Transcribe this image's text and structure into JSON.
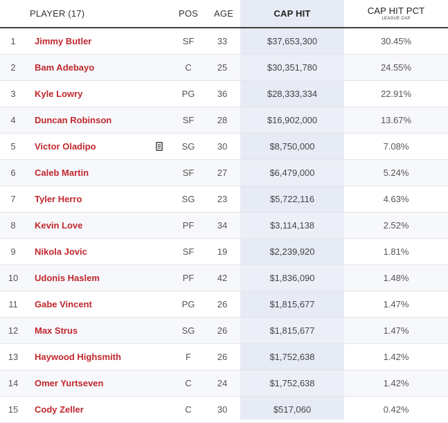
{
  "header": {
    "player": "PLAYER (17)",
    "pos": "POS",
    "age": "AGE",
    "cap_hit": "CAP HIT",
    "cap_hit_pct": "CAP HIT PCT",
    "cap_hit_pct_sub": "LEAGUE CAP"
  },
  "rows": [
    {
      "rank": "1",
      "name": "Jimmy Butler",
      "pos": "SF",
      "age": "33",
      "cap": "$37,653,300",
      "pct": "30.45%"
    },
    {
      "rank": "2",
      "name": "Bam Adebayo",
      "pos": "C",
      "age": "25",
      "cap": "$30,351,780",
      "pct": "24.55%"
    },
    {
      "rank": "3",
      "name": "Kyle Lowry",
      "pos": "PG",
      "age": "36",
      "cap": "$28,333,334",
      "pct": "22.91%"
    },
    {
      "rank": "4",
      "name": "Duncan Robinson",
      "pos": "SF",
      "age": "28",
      "cap": "$16,902,000",
      "pct": "13.67%"
    },
    {
      "rank": "5",
      "name": "Victor Oladipo",
      "pos": "SG",
      "age": "30",
      "cap": "$8,750,000",
      "pct": "7.08%",
      "note_icon": "document-icon"
    },
    {
      "rank": "6",
      "name": "Caleb Martin",
      "pos": "SF",
      "age": "27",
      "cap": "$6,479,000",
      "pct": "5.24%"
    },
    {
      "rank": "7",
      "name": "Tyler Herro",
      "pos": "SG",
      "age": "23",
      "cap": "$5,722,116",
      "pct": "4.63%"
    },
    {
      "rank": "8",
      "name": "Kevin Love",
      "pos": "PF",
      "age": "34",
      "cap": "$3,114,138",
      "pct": "2.52%"
    },
    {
      "rank": "9",
      "name": "Nikola Jovic",
      "pos": "SF",
      "age": "19",
      "cap": "$2,239,920",
      "pct": "1.81%"
    },
    {
      "rank": "10",
      "name": "Udonis Haslem",
      "pos": "PF",
      "age": "42",
      "cap": "$1,836,090",
      "pct": "1.48%"
    },
    {
      "rank": "11",
      "name": "Gabe Vincent",
      "pos": "PG",
      "age": "26",
      "cap": "$1,815,677",
      "pct": "1.47%"
    },
    {
      "rank": "12",
      "name": "Max Strus",
      "pos": "SG",
      "age": "26",
      "cap": "$1,815,677",
      "pct": "1.47%"
    },
    {
      "rank": "13",
      "name": "Haywood Highsmith",
      "pos": "F",
      "age": "26",
      "cap": "$1,752,638",
      "pct": "1.42%"
    },
    {
      "rank": "14",
      "name": "Omer Yurtseven",
      "pos": "C",
      "age": "24",
      "cap": "$1,752,638",
      "pct": "1.42%"
    },
    {
      "rank": "15",
      "name": "Cody Zeller",
      "pos": "C",
      "age": "30",
      "cap": "$517,060",
      "pct": "0.42%"
    }
  ],
  "colors": {
    "player_link": "#c0272d",
    "sorted_column_bg": "#e6ebf5",
    "header_rule": "#3d3d3d"
  }
}
